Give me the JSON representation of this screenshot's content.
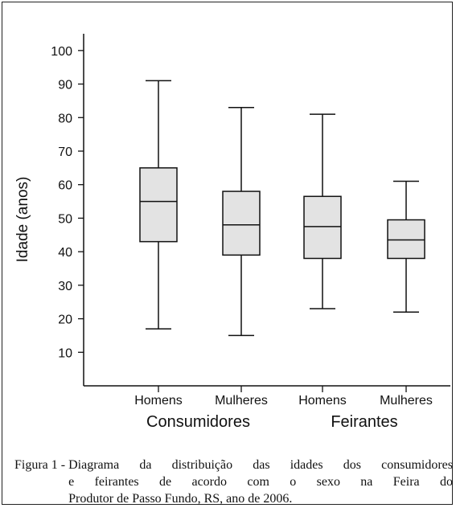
{
  "chart_data": {
    "type": "boxplot",
    "ylabel": "Idade (anos)",
    "ylim": [
      0,
      105
    ],
    "yticks": [
      10,
      20,
      30,
      40,
      50,
      60,
      70,
      80,
      90,
      100
    ],
    "categories": [
      "Homens",
      "Mulheres",
      "Homens",
      "Mulheres"
    ],
    "groups": [
      {
        "label": "Consumidores",
        "categories": [
          "Homens",
          "Mulheres"
        ]
      },
      {
        "label": "Feirantes",
        "categories": [
          "Homens",
          "Mulheres"
        ]
      }
    ],
    "boxes": [
      {
        "group": "Consumidores",
        "category": "Homens",
        "min": 17,
        "q1": 43,
        "median": 55,
        "q3": 65,
        "max": 91
      },
      {
        "group": "Consumidores",
        "category": "Mulheres",
        "min": 15,
        "q1": 39,
        "median": 48,
        "q3": 58,
        "max": 83
      },
      {
        "group": "Feirantes",
        "category": "Homens",
        "min": 23,
        "q1": 38,
        "median": 47.5,
        "q3": 56.5,
        "max": 81
      },
      {
        "group": "Feirantes",
        "category": "Mulheres",
        "min": 22,
        "q1": 38,
        "median": 43.5,
        "q3": 49.5,
        "max": 61
      }
    ],
    "box_fill": "#e3e3e3",
    "grid": false
  },
  "caption": {
    "prefix": "Figura 1 - ",
    "lines": [
      "Diagrama da distribuição das idades dos consumidores",
      "e feirantes de acordo com o sexo na Feira do",
      "Produtor de Passo Fundo, RS, ano de 2006."
    ]
  }
}
